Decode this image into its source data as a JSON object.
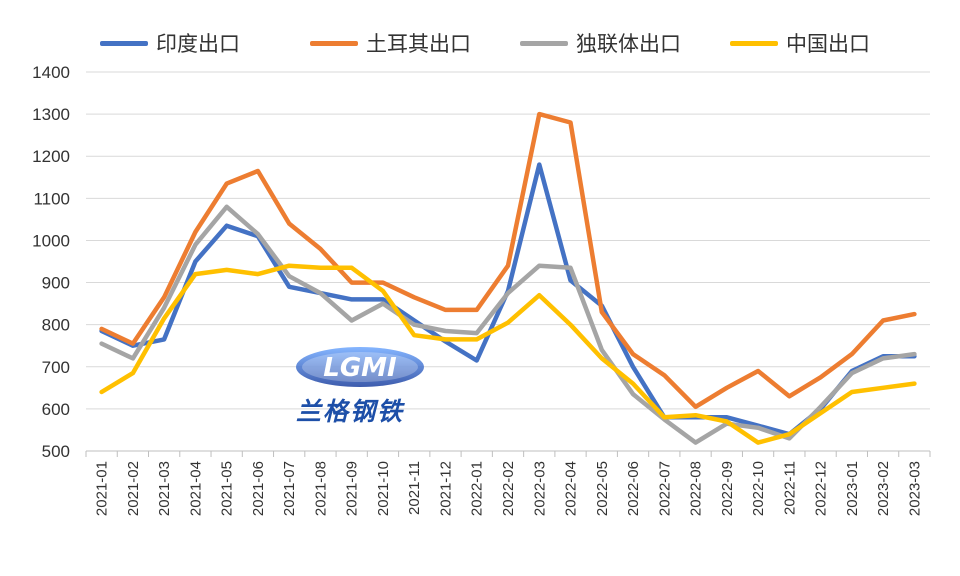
{
  "chart_data": {
    "type": "line",
    "title": "",
    "xlabel": "",
    "ylabel": "",
    "ylim": [
      500,
      1400
    ],
    "yticks": [
      500,
      600,
      700,
      800,
      900,
      1000,
      1100,
      1200,
      1300,
      1400
    ],
    "grid": true,
    "legend_position": "top",
    "categories": [
      "2021-01",
      "2021-02",
      "2021-03",
      "2021-04",
      "2021-05",
      "2021-06",
      "2021-07",
      "2021-08",
      "2021-09",
      "2021-10",
      "2021-11",
      "2021-12",
      "2022-01",
      "2022-02",
      "2022-03",
      "2022-04",
      "2022-05",
      "2022-06",
      "2022-07",
      "2022-08",
      "2022-09",
      "2022-10",
      "2022-11",
      "2022-12",
      "2023-01",
      "2023-02",
      "2023-03"
    ],
    "series": [
      {
        "name": "印度出口",
        "color": "#4472c4",
        "values": [
          785,
          750,
          765,
          950,
          1035,
          1010,
          890,
          875,
          860,
          860,
          810,
          760,
          715,
          880,
          1180,
          905,
          845,
          700,
          580,
          580,
          580,
          560,
          540,
          600,
          690,
          725,
          725
        ]
      },
      {
        "name": "土耳其出口",
        "color": "#ed7d31",
        "values": [
          790,
          755,
          865,
          1020,
          1135,
          1165,
          1040,
          980,
          900,
          900,
          865,
          835,
          835,
          940,
          1300,
          1280,
          830,
          730,
          680,
          605,
          650,
          690,
          630,
          675,
          730,
          810,
          825
        ]
      },
      {
        "name": "独联体出口",
        "color": "#a5a5a5",
        "values": [
          755,
          720,
          840,
          990,
          1080,
          1015,
          915,
          875,
          810,
          850,
          800,
          785,
          780,
          875,
          940,
          935,
          740,
          635,
          575,
          520,
          565,
          555,
          530,
          605,
          685,
          720,
          730
        ]
      },
      {
        "name": "中国出口",
        "color": "#ffc000",
        "values": [
          640,
          685,
          815,
          920,
          930,
          920,
          940,
          935,
          935,
          880,
          775,
          765,
          765,
          805,
          870,
          800,
          720,
          660,
          580,
          585,
          570,
          520,
          540,
          590,
          640,
          650,
          660
        ]
      }
    ]
  },
  "watermark": {
    "logo_text": "LGMI",
    "caption": "兰格钢铁"
  }
}
